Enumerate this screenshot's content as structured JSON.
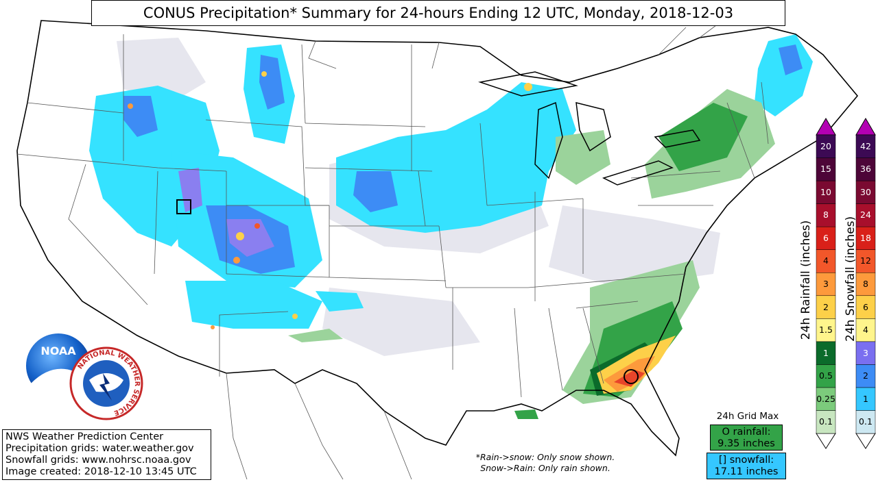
{
  "title": "CONUS Precipitation* Summary for 24-hours Ending 12 UTC, Monday, 2018-12-03",
  "credits": [
    "NWS Weather Prediction Center",
    "Precipitation grids: water.weather.gov",
    "Snowfall grids: www.nohrsc.noaa.gov",
    "Image created: 2018-12-10 13:45 UTC"
  ],
  "notes": [
    "*Rain->snow: Only snow shown.",
    "Snow->Rain: Only rain shown."
  ],
  "grid_max": {
    "heading": "24h Grid Max",
    "rain_line1": "O rainfall:",
    "rain_line2": "9.35 inches",
    "snow_line1": "[] snowfall:",
    "snow_line2": "17.11 inches",
    "rain_color": "#33a348",
    "snow_color": "#35c7ff"
  },
  "rain_scale": {
    "label": "24h Rainfall (inches)",
    "ticks": [
      "0.1",
      "0.25",
      "0.5",
      "1",
      "1.5",
      "2",
      "3",
      "4",
      "6",
      "8",
      "10",
      "15",
      "20"
    ],
    "colors": [
      "#c8e6c0",
      "#7ccb7c",
      "#33a348",
      "#0b6b2b",
      "#fff58c",
      "#fdd049",
      "#fd9a3c",
      "#f2572a",
      "#d92019",
      "#a80f2c",
      "#7a0a31",
      "#4d0538",
      "#3c0a54"
    ],
    "over_color": "#b300b3"
  },
  "snow_scale": {
    "label": "24h Snowfall (inches)",
    "ticks": [
      "0.1",
      "1",
      "2",
      "3",
      "4",
      "6",
      "8",
      "12",
      "18",
      "24",
      "30",
      "36",
      "42"
    ],
    "colors": [
      "#cde8f2",
      "#35c7ff",
      "#3d8cf5",
      "#7a6ff0",
      "#fff58c",
      "#fdd049",
      "#fd9a3c",
      "#f2572a",
      "#d92019",
      "#a80f2c",
      "#7a0a31",
      "#4d0538",
      "#3c0a54"
    ],
    "over_color": "#b300b3"
  },
  "logos": {
    "noaa_text": "NOAA",
    "nws_ring": "NATIONAL WEATHER SERVICE"
  },
  "colors": {
    "snow_light": "#35e2ff",
    "snow_blue": "#3d8cf5",
    "snow_purple": "#8a7ff0",
    "trace": "#e6e6ee",
    "rain_light": "#9bd39b",
    "rain_mid": "#33a348",
    "rain_dark": "#0b6b2b",
    "rain_yellow": "#fdd049",
    "rain_orange": "#fd9a3c",
    "rain_red": "#e8452a"
  }
}
